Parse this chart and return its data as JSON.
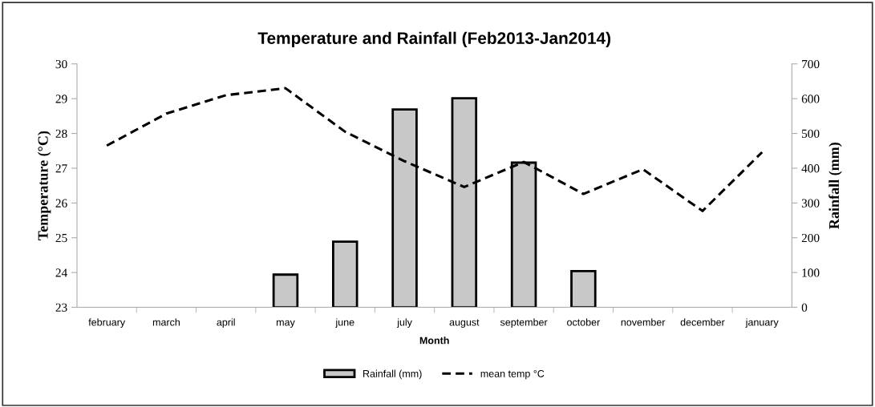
{
  "chart_data": {
    "type": "bar",
    "title": "Temperature and Rainfall (Feb2013-Jan2014)",
    "xlabel": "Month",
    "ylabel": "Temperature (°C)",
    "y2label": "Rainfall (mm)",
    "categories": [
      "february",
      "march",
      "april",
      "may",
      "june",
      "july",
      "august",
      "september",
      "october",
      "november",
      "december",
      "january"
    ],
    "series": [
      {
        "name": "Rainfall (mm)",
        "axis": "y2",
        "color": "#c8c8c8",
        "values": [
          null,
          null,
          null,
          94,
          189,
          569,
          601,
          416,
          104,
          null,
          null,
          null
        ]
      },
      {
        "name": "mean temp °C",
        "type": "line",
        "axis": "y",
        "color": "#000000",
        "line_style": "dashed",
        "marker": "none",
        "values": [
          27.65,
          28.57,
          29.1,
          29.3,
          28.05,
          27.2,
          26.46,
          27.18,
          26.26,
          26.97,
          25.77,
          27.46
        ]
      }
    ],
    "ylim": [
      23,
      30
    ],
    "yticks": [
      23,
      24,
      25,
      26,
      27,
      28,
      29,
      30
    ],
    "y2lim": [
      0,
      700
    ],
    "y2ticks": [
      0,
      100,
      200,
      300,
      400,
      500,
      600,
      700
    ],
    "grid": false,
    "legend": "bottom"
  }
}
